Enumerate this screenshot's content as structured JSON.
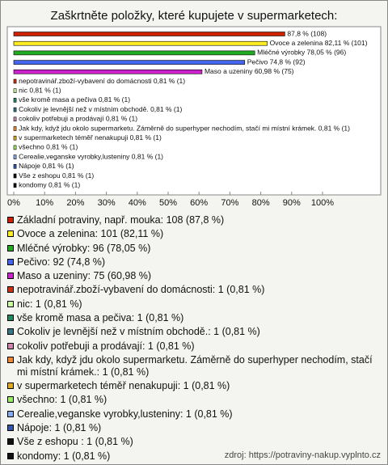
{
  "chart_data": {
    "type": "bar",
    "orientation": "horizontal",
    "title": "Zaškrtněte položky, které kupujete v supermarketech:",
    "values": [
      87.8,
      82.11,
      78.05,
      74.8,
      60.98,
      0.81,
      0.81,
      0.81,
      0.81,
      0.81,
      0.81,
      0.81,
      0.81,
      0.81,
      0.81,
      0.81,
      0.81
    ],
    "value_labels": [
      "87,8 % (108)",
      "Ovoce a zelenina 82,11 % (101)",
      "Mléčné výrobky 78,05 % (96)",
      "Pečivo 74,8 % (92)",
      "Maso a uzeniny 60,98 % (75)",
      "nepotravinář.zboží-vybavení do domácnosti 0,81 % (1)",
      "nic 0,81 % (1)",
      "vše kromě masa a pečiva 0,81 % (1)",
      "Cokoliv je levnější než v místním obchodě. 0,81 % (1)",
      "cokoliv potřebuji a prodávají 0,81 % (1)",
      "Jak kdy, když jdu okolo supermarketu. Záměrně do superhyper nechodím, stačí mi místní krámek. 0,81 % (1)",
      "v supermarketech téměř nenakupuji 0,81 % (1)",
      "všechno 0,81 % (1)",
      "Cerealie,veganske vyrobky,lusteniny 0,81 % (1)",
      "Nápoje 0,81 % (1)",
      "Vše z eshopu  0,81 % (1)",
      "kondomy 0,81 % (1)"
    ],
    "legend": [
      "Základní potraviny, např. mouka: 108 (87,8 %)",
      "Ovoce a zelenina: 101 (82,11 %)",
      "Mléčné výrobky: 96 (78,05 %)",
      "Pečivo: 92 (74,8 %)",
      "Maso a uzeniny: 75 (60,98 %)",
      "nepotravinář.zboží-vybavení do domácnosti: 1 (0,81 %)",
      "nic: 1 (0,81 %)",
      "vše kromě masa a pečiva: 1 (0,81 %)",
      "Cokoliv je levnější než v místním obchodě.: 1 (0,81 %)",
      "cokoliv potřebuji a prodávají: 1 (0,81 %)",
      "Jak kdy, když jdu okolo supermarketu. Záměrně do superhyper nechodím, stačí mi místní krámek.: 1 (0,81 %)",
      "v supermarketech téměř nenakupuji: 1 (0,81 %)",
      "všechno: 1 (0,81 %)",
      "Cerealie,veganske vyrobky,lusteniny: 1 (0,81 %)",
      "Nápoje: 1 (0,81 %)",
      "Vše z eshopu : 1 (0,81 %)",
      "kondomy: 1 (0,81 %)"
    ],
    "colors": [
      "#cc2200",
      "#ffee22",
      "#22aa22",
      "#4466ee",
      "#cc22cc",
      "#cc3311",
      "#ccff99",
      "#228866",
      "#337788",
      "#cc88aa",
      "#ee8833",
      "#ddaa22",
      "#99ee66",
      "#88aaee",
      "#3355aa",
      "#111111",
      "#111111"
    ],
    "xlim": [
      0,
      100
    ],
    "xticks": [
      {
        "value": 0,
        "label": "0%"
      },
      {
        "value": 10,
        "label": "10%"
      },
      {
        "value": 20,
        "label": "20%"
      },
      {
        "value": 30,
        "label": "30%"
      },
      {
        "value": 40,
        "label": "40%"
      },
      {
        "value": 50,
        "label": "50%"
      },
      {
        "value": 60,
        "label": "60%"
      },
      {
        "value": 70,
        "label": "70%"
      },
      {
        "value": 80,
        "label": "80%"
      },
      {
        "value": 90,
        "label": "90%"
      },
      {
        "value": 100,
        "label": "100%"
      }
    ],
    "source": "zdroj: https://potraviny-nakup.vyplnto.cz"
  }
}
